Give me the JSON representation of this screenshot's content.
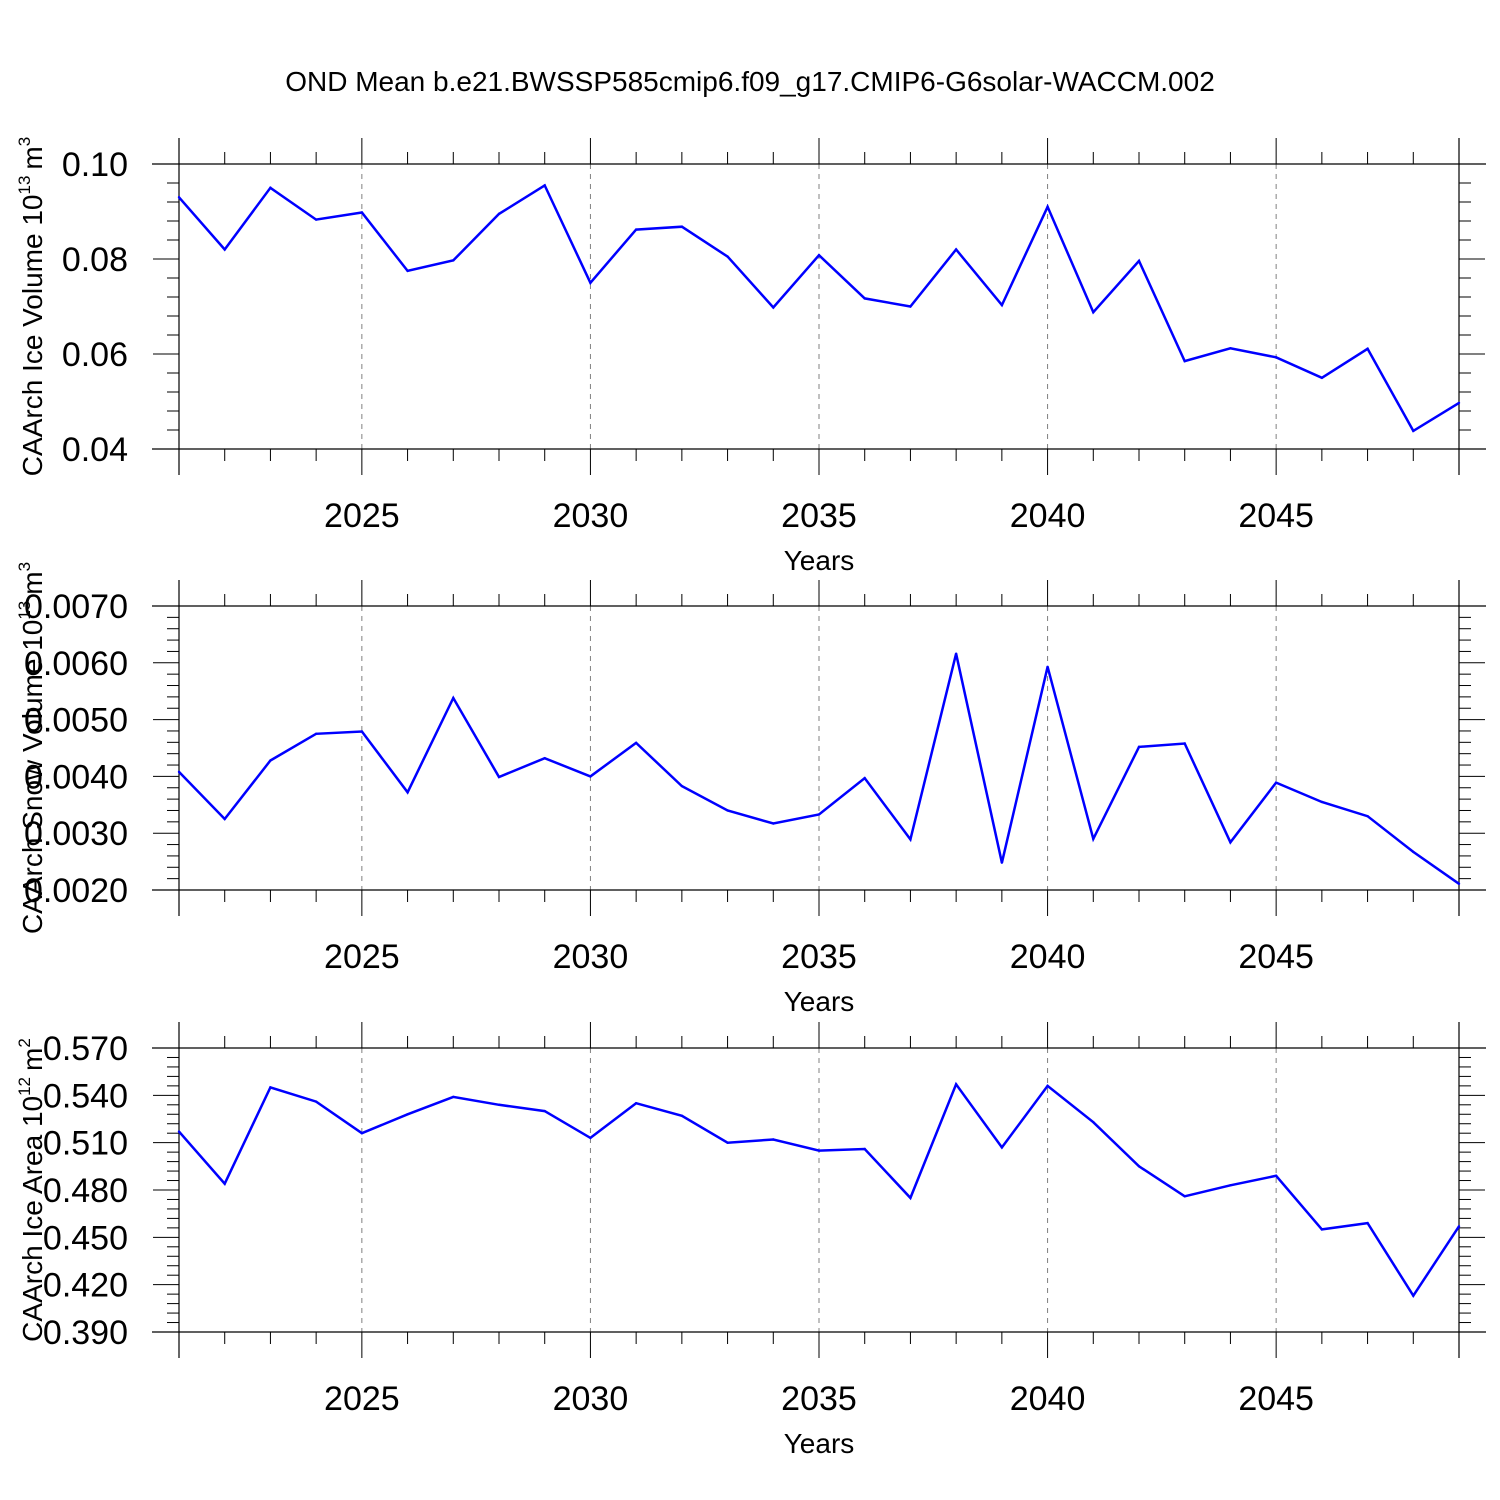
{
  "title": "OND Mean b.e21.BWSSP585cmip6.f09_g17.CMIP6-G6solar-WACCM.002",
  "colors": {
    "line": "#0000ff",
    "axes": "#000000",
    "grid": "#808080"
  },
  "chart_data": [
    {
      "type": "line",
      "xlabel": "Years",
      "ylabel_parts": {
        "prefix": "CAArch Ice Volume 10",
        "exp": "13",
        "unit": "m",
        "unit_exp": "3"
      },
      "xlim": [
        2021,
        2049
      ],
      "ylim": [
        0.04,
        0.1
      ],
      "x_ticks": [
        "2025",
        "2030",
        "2035",
        "2040",
        "2045"
      ],
      "y_ticks": [
        "0.04",
        "0.06",
        "0.08",
        "0.10"
      ],
      "grid": "vertical dashed at major x ticks",
      "x": [
        2021,
        2022,
        2023,
        2024,
        2025,
        2026,
        2027,
        2028,
        2029,
        2030,
        2031,
        2032,
        2033,
        2034,
        2035,
        2036,
        2037,
        2038,
        2039,
        2040,
        2041,
        2042,
        2043,
        2044,
        2045,
        2046,
        2047,
        2048,
        2049
      ],
      "series": [
        {
          "values": [
            0.093,
            0.082,
            0.095,
            0.0883,
            0.0898,
            0.0775,
            0.0797,
            0.0895,
            0.0955,
            0.075,
            0.0862,
            0.0868,
            0.0805,
            0.0698,
            0.0808,
            0.0717,
            0.07,
            0.082,
            0.0703,
            0.091,
            0.0688,
            0.0796,
            0.0585,
            0.0612,
            0.0593,
            0.055,
            0.0611,
            0.0438,
            0.0497
          ]
        }
      ]
    },
    {
      "type": "line",
      "xlabel": "Years",
      "ylabel_parts": {
        "prefix": "CAArch Snow Volume 10",
        "exp": "13",
        "unit": "m",
        "unit_exp": "3"
      },
      "xlim": [
        2021,
        2049
      ],
      "ylim": [
        0.002,
        0.007
      ],
      "x_ticks": [
        "2025",
        "2030",
        "2035",
        "2040",
        "2045"
      ],
      "y_ticks": [
        "0.0020",
        "0.0030",
        "0.0040",
        "0.0050",
        "0.0060",
        "0.0070"
      ],
      "grid": "vertical dashed at major x ticks",
      "x": [
        2021,
        2022,
        2023,
        2024,
        2025,
        2026,
        2027,
        2028,
        2029,
        2030,
        2031,
        2032,
        2033,
        2034,
        2035,
        2036,
        2037,
        2038,
        2039,
        2040,
        2041,
        2042,
        2043,
        2044,
        2045,
        2046,
        2047,
        2048,
        2049
      ],
      "series": [
        {
          "values": [
            0.00408,
            0.00325,
            0.00428,
            0.00475,
            0.00479,
            0.00372,
            0.00538,
            0.00399,
            0.00432,
            0.004,
            0.00459,
            0.00383,
            0.0034,
            0.00317,
            0.00333,
            0.00397,
            0.00289,
            0.00616,
            0.00248,
            0.00593,
            0.0029,
            0.00452,
            0.00458,
            0.00284,
            0.00389,
            0.00355,
            0.0033,
            0.00267,
            0.00211
          ]
        }
      ]
    },
    {
      "type": "line",
      "xlabel": "Years",
      "ylabel_parts": {
        "prefix": "CAArch Ice Area 10",
        "exp": "12",
        "unit": "m",
        "unit_exp": "2"
      },
      "xlim": [
        2021,
        2049
      ],
      "ylim": [
        0.39,
        0.57
      ],
      "x_ticks": [
        "2025",
        "2030",
        "2035",
        "2040",
        "2045"
      ],
      "y_ticks": [
        "0.390",
        "0.420",
        "0.450",
        "0.480",
        "0.510",
        "0.540",
        "0.570"
      ],
      "grid": "vertical dashed at major x ticks",
      "x": [
        2021,
        2022,
        2023,
        2024,
        2025,
        2026,
        2027,
        2028,
        2029,
        2030,
        2031,
        2032,
        2033,
        2034,
        2035,
        2036,
        2037,
        2038,
        2039,
        2040,
        2041,
        2042,
        2043,
        2044,
        2045,
        2046,
        2047,
        2048,
        2049
      ],
      "series": [
        {
          "values": [
            0.517,
            0.484,
            0.545,
            0.536,
            0.516,
            0.528,
            0.539,
            0.534,
            0.53,
            0.513,
            0.535,
            0.527,
            0.51,
            0.512,
            0.505,
            0.506,
            0.475,
            0.547,
            0.507,
            0.546,
            0.523,
            0.495,
            0.476,
            0.483,
            0.489,
            0.455,
            0.459,
            0.413,
            0.457
          ]
        }
      ]
    }
  ]
}
